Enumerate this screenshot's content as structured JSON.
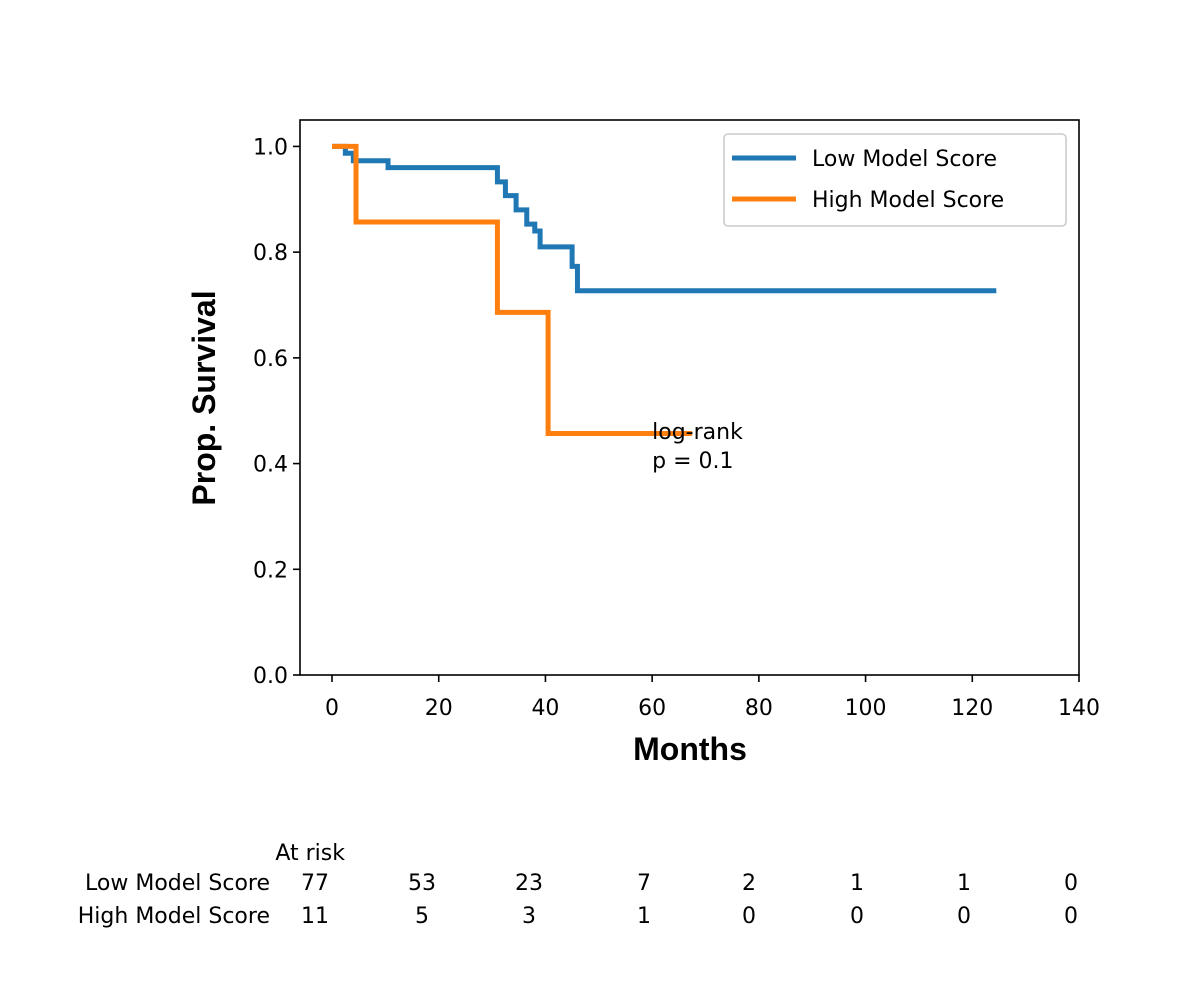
{
  "chart_data": {
    "type": "line",
    "step": true,
    "xlabel": "Months",
    "ylabel": "Prop. Survival",
    "xlim": [
      -6,
      140
    ],
    "ylim": [
      0,
      1.05
    ],
    "xticks": [
      0,
      20,
      40,
      60,
      80,
      100,
      120,
      140
    ],
    "xtick_labels": [
      "0",
      "20",
      "40",
      "60",
      "80",
      "100",
      "120",
      "140"
    ],
    "yticks": [
      0.0,
      0.2,
      0.4,
      0.6,
      0.8,
      1.0
    ],
    "ytick_labels": [
      "0.0",
      "0.2",
      "0.4",
      "0.6",
      "0.8",
      "1.0"
    ],
    "legend_position": "top-right",
    "series": [
      {
        "name": "Low Model Score",
        "color": "#1f77b4",
        "x": [
          0,
          2.5,
          4,
          10.5,
          31,
          32.5,
          34.5,
          36.5,
          38,
          39,
          45,
          46,
          124.5
        ],
        "y": [
          1.0,
          0.987,
          0.973,
          0.96,
          0.933,
          0.907,
          0.88,
          0.853,
          0.84,
          0.81,
          0.773,
          0.727,
          0.727
        ]
      },
      {
        "name": "High Model Score",
        "color": "#ff7f0e",
        "x": [
          0,
          4.5,
          31,
          40.5,
          67.5
        ],
        "y": [
          1.0,
          0.857,
          0.686,
          0.457,
          0.457
        ]
      }
    ],
    "annotation": {
      "line1": "log-rank",
      "line2": "p = 0.1",
      "x": 60,
      "y": 0.46
    },
    "at_risk": {
      "title": "At risk",
      "times": [
        0,
        20,
        40,
        60,
        80,
        100,
        120,
        140
      ],
      "rows": [
        {
          "label": "Low Model Score",
          "counts": [
            "77",
            "53",
            "23",
            "7",
            "2",
            "1",
            "1",
            "0"
          ]
        },
        {
          "label": "High Model Score",
          "counts": [
            "11",
            "5",
            "3",
            "1",
            "0",
            "0",
            "0",
            "0"
          ]
        }
      ]
    }
  }
}
